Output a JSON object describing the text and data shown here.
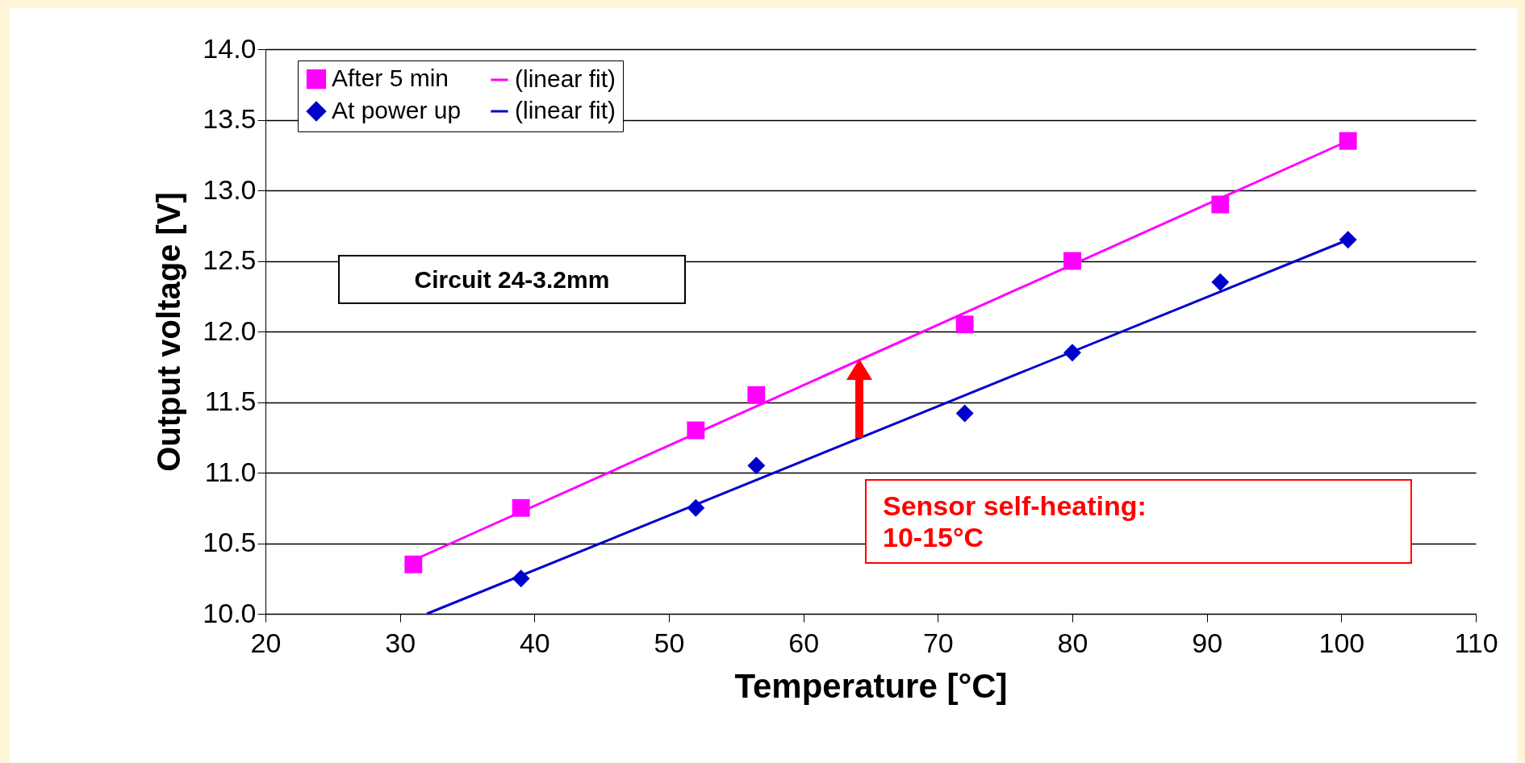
{
  "chart_data": {
    "type": "scatter",
    "xlabel": "Temperature [°C]",
    "ylabel": "Output voltage [V]",
    "xlim": [
      20,
      110
    ],
    "xticks": [
      20,
      30,
      40,
      50,
      60,
      70,
      80,
      90,
      100,
      110
    ],
    "ylim": [
      10,
      14
    ],
    "yticks": [
      {
        "value": 10,
        "label": "10.0"
      },
      {
        "value": 10.5,
        "label": "10.5"
      },
      {
        "value": 11,
        "label": "11.0"
      },
      {
        "value": 11.5,
        "label": "11.5"
      },
      {
        "value": 12,
        "label": "12.0"
      },
      {
        "value": 12.5,
        "label": "12.5"
      },
      {
        "value": 13,
        "label": "13.0"
      },
      {
        "value": 13.5,
        "label": "13.5"
      },
      {
        "value": 14,
        "label": "14.0"
      }
    ],
    "grid": "y",
    "legend": "top left",
    "series": [
      {
        "name": "After 5 min",
        "type": "scatter",
        "marker": "square",
        "color": "#ff00ff",
        "x": [
          31,
          39,
          52,
          56.5,
          72,
          80,
          91,
          100.5
        ],
        "values": [
          10.35,
          10.75,
          11.3,
          11.55,
          12.05,
          12.5,
          12.9,
          13.35
        ]
      },
      {
        "name": "At power up",
        "type": "scatter",
        "marker": "diamond",
        "color": "#0000cc",
        "x": [
          39,
          52,
          56.5,
          72,
          80,
          91,
          100.5
        ],
        "values": [
          10.25,
          10.75,
          11.05,
          11.42,
          11.85,
          12.35,
          12.65
        ]
      },
      {
        "name": "(linear fit)",
        "type": "line",
        "color": "#ff00ff",
        "x": [
          31,
          100.5
        ],
        "values": [
          10.38,
          13.35
        ]
      },
      {
        "name": "(linear fit)",
        "type": "line",
        "color": "#0000cc",
        "x": [
          32,
          100.5
        ],
        "values": [
          10,
          12.65
        ]
      }
    ],
    "annotations": [
      "Circuit 24-3.2mm",
      "Sensor self-heating: 10-15°C"
    ]
  }
}
